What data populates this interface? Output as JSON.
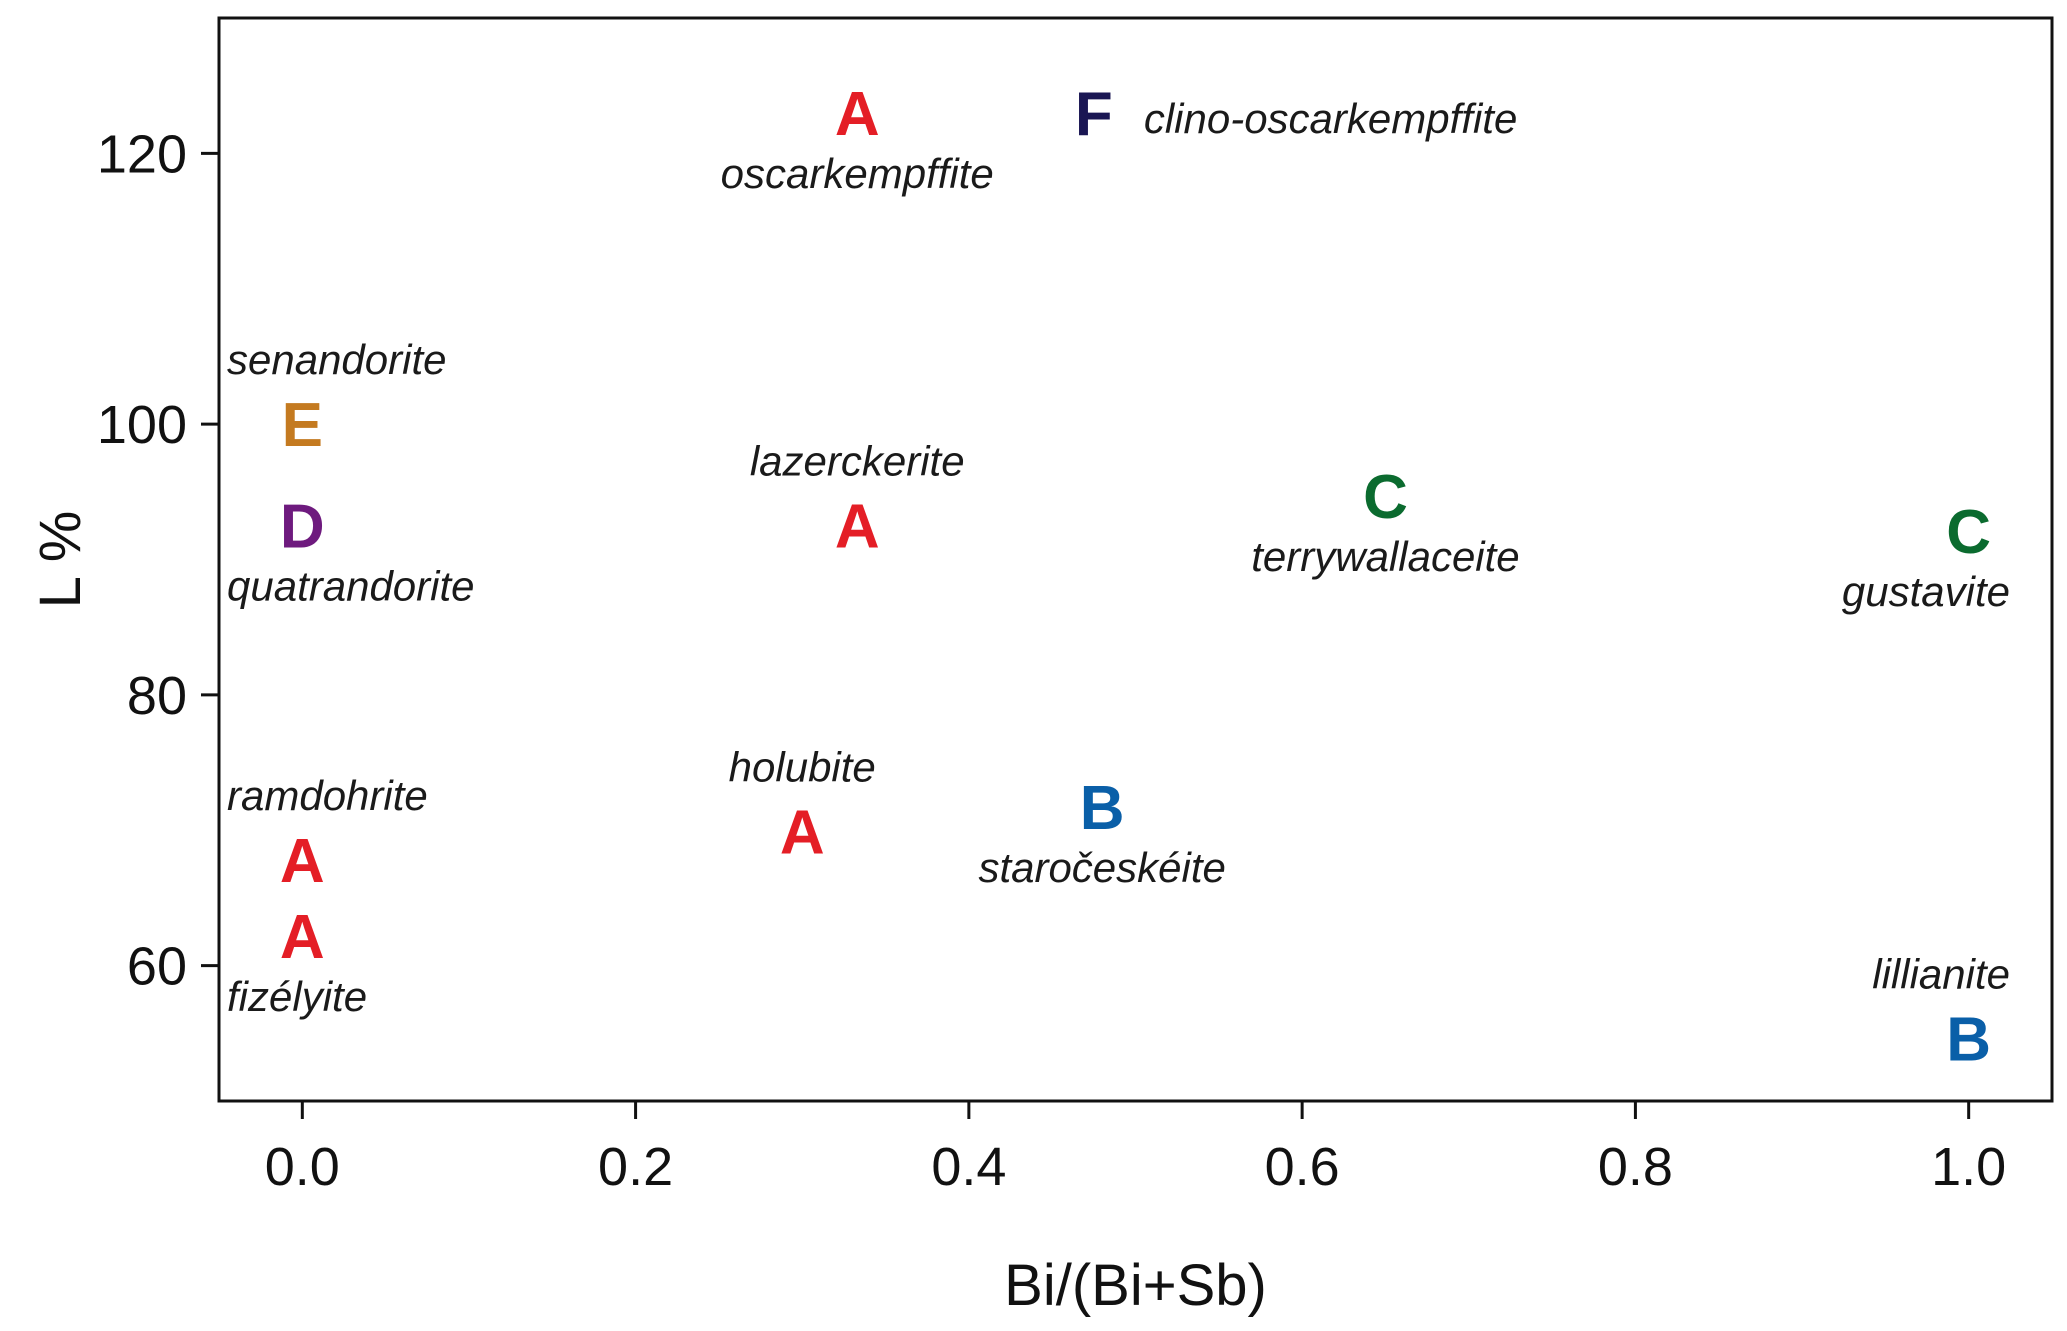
{
  "chart_data": {
    "type": "scatter",
    "title": "",
    "xlabel": "Bi/(Bi+Sb)",
    "ylabel": "L %",
    "xlim": [
      -0.05,
      1.05
    ],
    "ylim": [
      50,
      130
    ],
    "xticks": [
      "0.0",
      "0.2",
      "0.4",
      "0.6",
      "0.8",
      "1.0"
    ],
    "xtick_values": [
      0.0,
      0.2,
      0.4,
      0.6,
      0.8,
      1.0
    ],
    "yticks": [
      "60",
      "80",
      "100",
      "120"
    ],
    "ytick_values": [
      60,
      80,
      100,
      120
    ],
    "grid": false,
    "group_colors": {
      "A": "#e41e26",
      "B": "#0a5fa8",
      "C": "#0b6b2f",
      "D": "#6e1a7e",
      "E": "#c47a20",
      "F": "#1a1653"
    },
    "points": [
      {
        "x": 0.333,
        "y": 123.0,
        "group": "A",
        "name": "oscarkempffite",
        "label_pos": "below"
      },
      {
        "x": 0.475,
        "y": 123.0,
        "group": "F",
        "name": "clino-oscarkempffite",
        "label_pos": "right"
      },
      {
        "x": 0.0,
        "y": 100.0,
        "group": "E",
        "name": "senandorite",
        "label_pos": "above"
      },
      {
        "x": 0.0,
        "y": 92.5,
        "group": "D",
        "name": "quatrandorite",
        "label_pos": "below"
      },
      {
        "x": 0.333,
        "y": 92.5,
        "group": "A",
        "name": "lazerckerite",
        "label_pos": "above"
      },
      {
        "x": 0.65,
        "y": 94.7,
        "group": "C",
        "name": "terrywallaceite",
        "label_pos": "below"
      },
      {
        "x": 1.0,
        "y": 92.1,
        "group": "C",
        "name": "gustavite",
        "label_pos": "below"
      },
      {
        "x": 0.0,
        "y": 67.8,
        "group": "A",
        "name": "ramdohrite",
        "label_pos": "above"
      },
      {
        "x": 0.3,
        "y": 69.9,
        "group": "A",
        "name": "holubite",
        "label_pos": "above"
      },
      {
        "x": 0.48,
        "y": 71.7,
        "group": "B",
        "name": "staročeskéite",
        "label_pos": "below"
      },
      {
        "x": 0.0,
        "y": 62.2,
        "group": "A",
        "name": "fizélyite",
        "label_pos": "below"
      },
      {
        "x": 1.0,
        "y": 54.6,
        "group": "B",
        "name": "lillianite",
        "label_pos": "above"
      }
    ]
  }
}
